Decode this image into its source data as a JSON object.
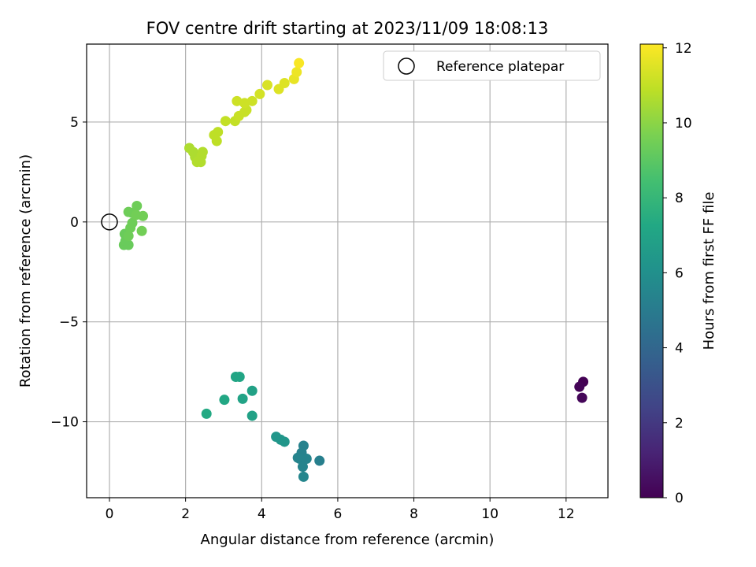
{
  "chart_data": {
    "type": "scatter",
    "title": "FOV centre drift starting at 2023/11/09 18:08:13",
    "xlabel": "Angular distance from reference (arcmin)",
    "ylabel": "Rotation from reference (arcmin)",
    "xlim": [
      -0.6,
      13.1
    ],
    "ylim": [
      -13.8,
      8.9
    ],
    "xticks": [
      0,
      2,
      4,
      6,
      8,
      10,
      12
    ],
    "yticks": [
      -10,
      -5,
      0,
      5
    ],
    "grid": true,
    "colormap": "viridis",
    "colorbar": {
      "label": "Hours from first FF file",
      "range": [
        0,
        12.1
      ],
      "ticks": [
        0,
        2,
        4,
        6,
        8,
        10,
        12
      ]
    },
    "legend": {
      "placement": "top-right",
      "entries": [
        {
          "label": "Reference platepar",
          "marker": "open-circle",
          "color": "#000000"
        }
      ]
    },
    "reference_point": {
      "x": 0,
      "y": 0
    },
    "series": [
      {
        "points": [
          {
            "x": 12.45,
            "y": -8.0,
            "c": 0.0
          },
          {
            "x": 12.35,
            "y": -8.25,
            "c": 0.1
          },
          {
            "x": 12.42,
            "y": -8.8,
            "c": 0.2
          },
          {
            "x": 5.52,
            "y": -11.95,
            "c": 5.2
          },
          {
            "x": 5.1,
            "y": -11.2,
            "c": 5.3
          },
          {
            "x": 5.05,
            "y": -11.55,
            "c": 5.3
          },
          {
            "x": 5.18,
            "y": -11.85,
            "c": 5.4
          },
          {
            "x": 5.0,
            "y": -11.85,
            "c": 5.4
          },
          {
            "x": 4.95,
            "y": -11.8,
            "c": 5.4
          },
          {
            "x": 5.08,
            "y": -12.25,
            "c": 5.4
          },
          {
            "x": 5.1,
            "y": -12.75,
            "c": 5.5
          },
          {
            "x": 4.6,
            "y": -11.0,
            "c": 6.3
          },
          {
            "x": 4.5,
            "y": -10.9,
            "c": 6.3
          },
          {
            "x": 4.38,
            "y": -10.75,
            "c": 6.3
          },
          {
            "x": 3.75,
            "y": -8.45,
            "c": 6.9
          },
          {
            "x": 3.75,
            "y": -9.7,
            "c": 6.9
          },
          {
            "x": 3.5,
            "y": -8.85,
            "c": 7.0
          },
          {
            "x": 3.32,
            "y": -7.75,
            "c": 7.1
          },
          {
            "x": 3.42,
            "y": -7.75,
            "c": 7.1
          },
          {
            "x": 3.02,
            "y": -8.9,
            "c": 7.2
          },
          {
            "x": 2.55,
            "y": -9.6,
            "c": 7.3
          },
          {
            "x": 0.38,
            "y": -1.15,
            "c": 9.3
          },
          {
            "x": 0.5,
            "y": -1.15,
            "c": 9.3
          },
          {
            "x": 0.42,
            "y": -0.95,
            "c": 9.3
          },
          {
            "x": 0.4,
            "y": -0.6,
            "c": 9.3
          },
          {
            "x": 0.5,
            "y": -0.7,
            "c": 9.4
          },
          {
            "x": 0.55,
            "y": -0.3,
            "c": 9.4
          },
          {
            "x": 0.6,
            "y": -0.05,
            "c": 9.4
          },
          {
            "x": 0.5,
            "y": 0.5,
            "c": 9.4
          },
          {
            "x": 0.6,
            "y": 0.45,
            "c": 9.4
          },
          {
            "x": 0.72,
            "y": 0.8,
            "c": 9.4
          },
          {
            "x": 0.7,
            "y": 0.35,
            "c": 9.5
          },
          {
            "x": 0.88,
            "y": 0.3,
            "c": 9.5
          },
          {
            "x": 0.85,
            "y": -0.45,
            "c": 9.5
          },
          {
            "x": 2.1,
            "y": 3.7,
            "c": 10.6
          },
          {
            "x": 2.2,
            "y": 3.5,
            "c": 10.6
          },
          {
            "x": 2.25,
            "y": 3.25,
            "c": 10.6
          },
          {
            "x": 2.3,
            "y": 3.0,
            "c": 10.7
          },
          {
            "x": 2.4,
            "y": 3.0,
            "c": 10.7
          },
          {
            "x": 2.42,
            "y": 3.3,
            "c": 10.7
          },
          {
            "x": 2.45,
            "y": 3.5,
            "c": 10.7
          },
          {
            "x": 2.75,
            "y": 4.35,
            "c": 10.9
          },
          {
            "x": 2.85,
            "y": 4.5,
            "c": 10.9
          },
          {
            "x": 2.82,
            "y": 4.05,
            "c": 10.9
          },
          {
            "x": 3.05,
            "y": 5.05,
            "c": 11.0
          },
          {
            "x": 3.3,
            "y": 5.05,
            "c": 11.0
          },
          {
            "x": 3.4,
            "y": 5.3,
            "c": 11.1
          },
          {
            "x": 3.55,
            "y": 5.5,
            "c": 11.1
          },
          {
            "x": 3.6,
            "y": 5.6,
            "c": 11.1
          },
          {
            "x": 3.35,
            "y": 6.05,
            "c": 11.2
          },
          {
            "x": 3.55,
            "y": 5.95,
            "c": 11.2
          },
          {
            "x": 3.75,
            "y": 6.05,
            "c": 11.2
          },
          {
            "x": 3.95,
            "y": 6.4,
            "c": 11.3
          },
          {
            "x": 4.15,
            "y": 6.85,
            "c": 11.4
          },
          {
            "x": 4.45,
            "y": 6.65,
            "c": 11.5
          },
          {
            "x": 4.6,
            "y": 6.95,
            "c": 11.5
          },
          {
            "x": 4.85,
            "y": 7.15,
            "c": 11.7
          },
          {
            "x": 4.92,
            "y": 7.5,
            "c": 11.8
          },
          {
            "x": 4.98,
            "y": 7.95,
            "c": 12.0
          }
        ]
      }
    ]
  }
}
